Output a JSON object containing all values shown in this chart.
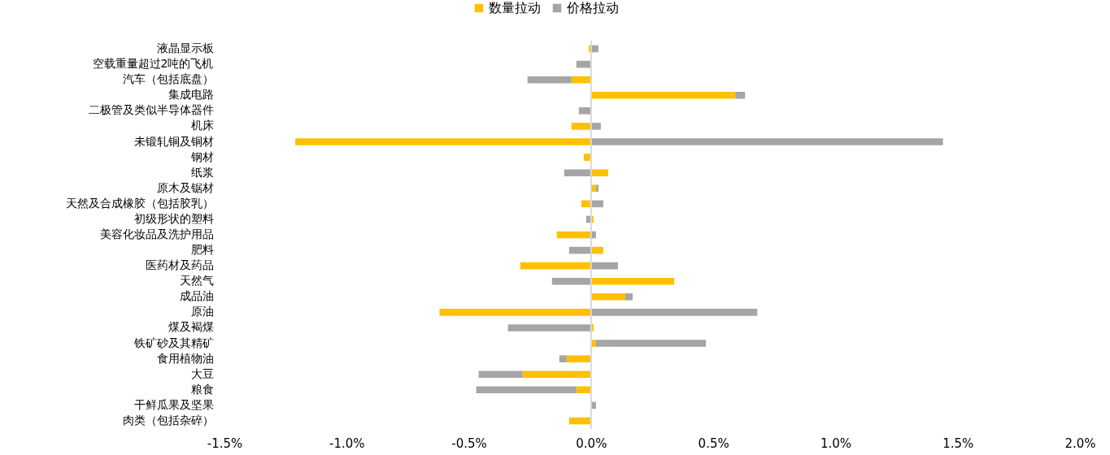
{
  "chart_data": {
    "type": "bar",
    "orientation": "horizontal",
    "stacked": true,
    "legend": "top",
    "categories": [
      "液晶显示板",
      "空载重量超过2吨的飞机",
      "汽车（包括底盘）",
      "集成电路",
      "二极管及类似半导体器件",
      "机床",
      "未锻轧铜及铜材",
      "钢材",
      "纸浆",
      "原木及锯材",
      "天然及合成橡胶（包括胶乳）",
      "初级形状的塑料",
      "美容化妆品及洗护用品",
      "肥料",
      "医药材及药品",
      "天然气",
      "成品油",
      "原油",
      "煤及褐煤",
      "铁矿砂及其精矿",
      "食用植物油",
      "大豆",
      "粮食",
      "干鲜瓜果及坚果",
      "肉类（包括杂碎）"
    ],
    "series": [
      {
        "name": "数量拉动",
        "color": "#ffc000",
        "values": [
          -0.01,
          0,
          -0.08,
          0.59,
          0,
          -0.08,
          -1.21,
          -0.03,
          0.07,
          0.02,
          -0.04,
          0.01,
          -0.14,
          0.05,
          -0.29,
          0.34,
          0.14,
          -0.62,
          0.01,
          0.02,
          -0.1,
          -0.28,
          -0.06,
          0,
          -0.09
        ]
      },
      {
        "name": "价格拉动",
        "color": "#a5a5a5",
        "values": [
          0.03,
          -0.06,
          -0.18,
          0.04,
          -0.05,
          0.04,
          1.44,
          0,
          -0.11,
          0.01,
          0.05,
          -0.02,
          0.02,
          -0.09,
          0.11,
          -0.16,
          0.03,
          0.68,
          -0.34,
          0.45,
          -0.03,
          -0.18,
          -0.41,
          0.02,
          0
        ]
      }
    ],
    "xlim": [
      -1.5,
      2.0
    ],
    "xticks": [
      {
        "value": -1.5,
        "label": "-1.5%"
      },
      {
        "value": -1.0,
        "label": "-1.0%"
      },
      {
        "value": -0.5,
        "label": "-0.5%"
      },
      {
        "value": 0,
        "label": "0.0%"
      },
      {
        "value": 0.5,
        "label": "0.5%"
      },
      {
        "value": 1.0,
        "label": "1.0%"
      },
      {
        "value": 1.5,
        "label": "1.5%"
      },
      {
        "value": 2.0,
        "label": "2.0%"
      }
    ],
    "ref_lines": [
      {
        "axis": "x",
        "value": 0,
        "color": "#d9d9d9"
      }
    ]
  }
}
